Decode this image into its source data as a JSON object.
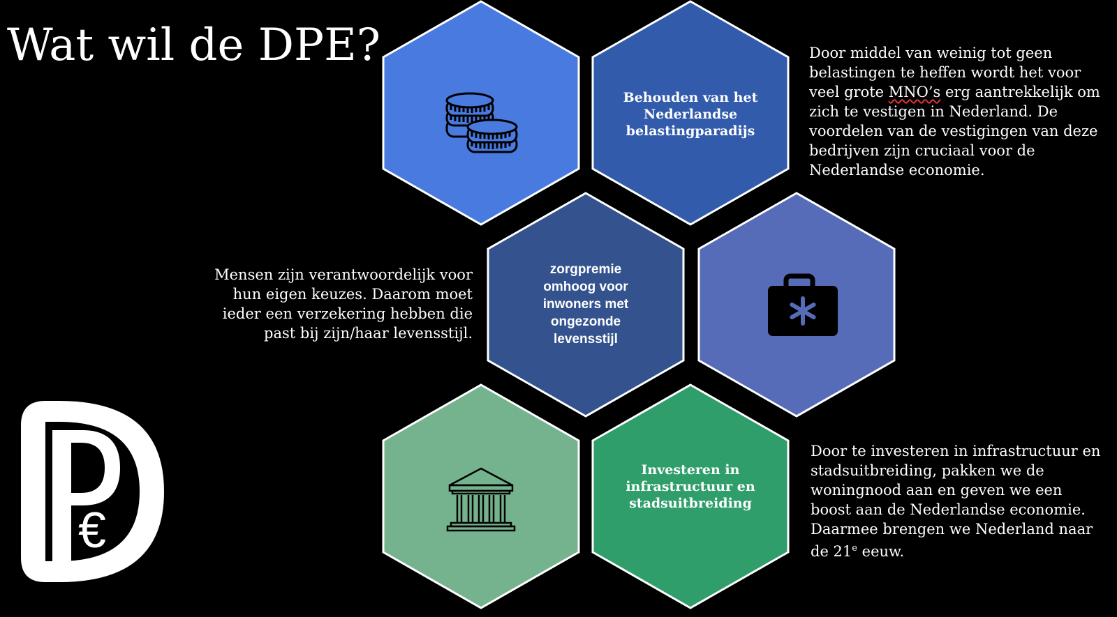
{
  "slide": {
    "title": "Wat wil de DPE?",
    "colors": {
      "background": "#000000",
      "hex_blue_light": "#487ADF",
      "hex_blue_mid": "#325CAB",
      "hex_navy": "#34538E",
      "hex_periwinkle": "#566CB8",
      "hex_green_light": "#74B38D",
      "hex_green": "#2F9E6B",
      "hex_border": "#ffffff"
    }
  },
  "hexagons": {
    "coins": {
      "icon": "coins-icon"
    },
    "tax_haven": {
      "label": "Behouden van het Nederlandse belastingparadijs"
    },
    "health_premium": {
      "label": "zorgpremie omhoog voor inwoners met ongezonde levensstijl"
    },
    "medical": {
      "icon": "medical-case-icon"
    },
    "institution": {
      "icon": "bank-building-icon"
    },
    "infrastructure": {
      "label": "Investeren in infrastructuur en stadsuitbreiding"
    }
  },
  "texts": {
    "tax": {
      "part1": "Door middel van weinig tot geen belastingen te heffen wordt het voor veel grote ",
      "mno": "MNO’s",
      "part2": " erg aantrekkelijk om zich te vestigen in Nederland. De voordelen van de vestigingen van deze bedrijven zijn cruciaal voor de Nederlandse economie."
    },
    "health": "Mensen zijn verantwoordelijk voor hun eigen keuzes. Daarom moet ieder een verzekering hebben die past bij zijn/haar levensstijl.",
    "infra": {
      "part1": "Door te investeren in infrastructuur en stadsuitbreiding, pakken we de woningnood aan en geven we een boost aan de Nederlandse economie. Daarmee brengen we Nederland naar de 21",
      "sup": "e",
      "part2": " eeuw."
    }
  },
  "logo": {
    "icon": "dpe-logo",
    "symbol": "€"
  }
}
